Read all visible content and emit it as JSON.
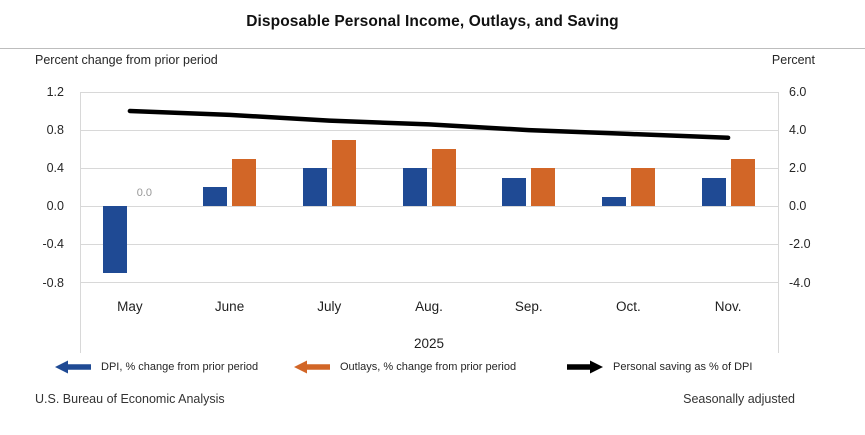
{
  "title": "Disposable Personal Income, Outlays, and Saving",
  "axis_units": {
    "left": "Percent change from prior period",
    "right": "Percent"
  },
  "footer": {
    "source": "U.S. Bureau of Economic Analysis",
    "note": "Seasonally adjusted"
  },
  "colors": {
    "dpi": "#1F4A94",
    "outlays": "#D26627",
    "saving_line": "#000000",
    "gridline": "#D8D8D8",
    "annotation_text": "#979797"
  },
  "legend": [
    {
      "label": "DPI, % change from prior period",
      "color_key": "dpi",
      "arrow": "left"
    },
    {
      "label": "Outlays, % change from prior period",
      "color_key": "outlays",
      "arrow": "left"
    },
    {
      "label": "Personal saving as % of DPI",
      "color_key": "saving_line",
      "arrow": "right"
    }
  ],
  "chart_data": {
    "type": "bar",
    "title": "Disposable Personal Income, Outlays, and Saving",
    "categories": [
      "May",
      "June",
      "July",
      "Aug.",
      "Sep.",
      "Oct.",
      "Nov."
    ],
    "year_label": "2025",
    "series": [
      {
        "name": "DPI, % change from prior period",
        "type": "bar",
        "axis": "left",
        "color_key": "dpi",
        "values": [
          -0.7,
          0.2,
          0.4,
          0.4,
          0.3,
          0.1,
          0.3
        ]
      },
      {
        "name": "Outlays, % change from prior period",
        "type": "bar",
        "axis": "left",
        "color_key": "outlays",
        "values": [
          0.0,
          0.5,
          0.7,
          0.6,
          0.4,
          0.4,
          0.5
        ]
      },
      {
        "name": "Personal saving as % of DPI",
        "type": "line",
        "axis": "right",
        "color_key": "saving_line",
        "values": [
          5.0,
          4.8,
          4.5,
          4.3,
          4.0,
          3.8,
          3.6
        ]
      }
    ],
    "left_axis": {
      "label": "Percent change from prior period",
      "ticks": [
        "1.2",
        "0.8",
        "0.4",
        "0.0",
        "-0.4",
        "-0.8"
      ],
      "min": -0.8,
      "max": 1.2
    },
    "right_axis": {
      "label": "Percent",
      "ticks": [
        "6.0",
        "4.0",
        "2.0",
        "0.0",
        "-2.0",
        "-4.0"
      ],
      "min": -4.0,
      "max": 6.0
    },
    "annotations": [
      {
        "text": "0.0",
        "category_index": 0,
        "series_index": 1
      }
    ],
    "grid": true,
    "legend_position": "bottom"
  }
}
